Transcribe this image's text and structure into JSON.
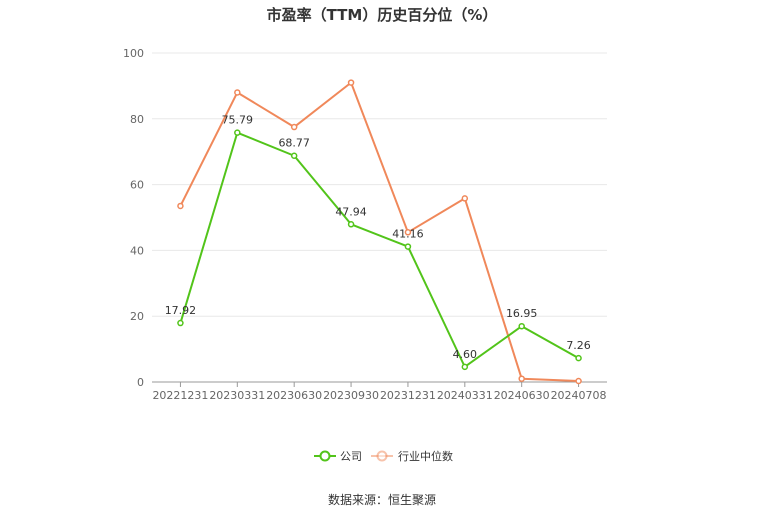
{
  "chart_data": {
    "type": "line",
    "title": "市盈率（TTM）历史百分位（%）",
    "categories": [
      "20221231",
      "20230331",
      "20230630",
      "20230930",
      "20231231",
      "20240331",
      "20240630",
      "20240708"
    ],
    "ylim": [
      0,
      100
    ],
    "yticks": [
      0,
      20,
      40,
      60,
      80,
      100
    ],
    "grid": true,
    "legend_position": "bottom",
    "series": [
      {
        "name": "公司",
        "color": "#52c41a",
        "values": [
          17.92,
          75.79,
          68.77,
          47.94,
          41.16,
          4.6,
          16.95,
          7.26
        ],
        "labels": [
          "17.92",
          "75.79",
          "68.77",
          "47.94",
          "41.16",
          "4.60",
          "16.95",
          "7.26"
        ]
      },
      {
        "name": "行业中位数",
        "color": "#f0885a",
        "values": [
          53.5,
          88.0,
          77.5,
          91.0,
          45.5,
          55.8,
          1.0,
          0.3
        ]
      }
    ]
  },
  "source": "数据来源：恒生聚源"
}
